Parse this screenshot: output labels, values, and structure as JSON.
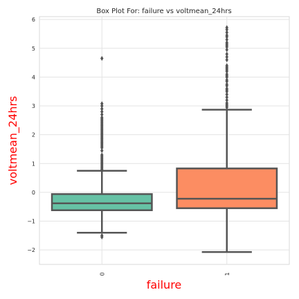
{
  "chart_data": {
    "type": "box",
    "title": "Box Plot For: failure vs voltmean_24hrs",
    "xlabel": "failure",
    "ylabel": "voltmean_24hrs",
    "categories": [
      "0",
      "1"
    ],
    "ylim": [
      -2.5,
      6.1
    ],
    "yticks": [
      -2,
      -1,
      0,
      1,
      2,
      3,
      4,
      5,
      6
    ],
    "grid": true,
    "boxes": [
      {
        "category": "0",
        "color": "#66c2a5",
        "whisker_low": -1.4,
        "q1": -0.62,
        "median": -0.38,
        "q3": -0.06,
        "whisker_high": 0.75,
        "outliers": [
          -1.55,
          -1.5,
          0.8,
          0.85,
          0.9,
          0.95,
          1.0,
          1.05,
          1.1,
          1.15,
          1.2,
          1.25,
          1.3,
          1.45,
          1.55,
          1.6,
          1.65,
          1.7,
          1.75,
          1.8,
          1.85,
          1.9,
          1.95,
          2.0,
          2.05,
          2.1,
          2.15,
          2.2,
          2.25,
          2.3,
          2.35,
          2.4,
          2.45,
          2.5,
          2.55,
          2.6,
          2.7,
          2.8,
          2.9,
          3.0,
          3.08,
          4.65
        ]
      },
      {
        "category": "1",
        "color": "#fc8d62",
        "whisker_low": -2.07,
        "q1": -0.55,
        "median": -0.22,
        "q3": 0.83,
        "whisker_high": 2.87,
        "outliers": [
          2.95,
          3.0,
          3.05,
          3.1,
          3.2,
          3.3,
          3.4,
          3.5,
          3.55,
          3.6,
          3.7,
          3.75,
          3.85,
          3.9,
          4.0,
          4.05,
          4.1,
          4.2,
          4.25,
          4.3,
          4.35,
          4.4,
          4.6,
          4.7,
          4.8,
          4.95,
          5.05,
          5.1,
          5.15,
          5.2,
          5.3,
          5.4,
          5.45,
          5.55,
          5.65,
          5.72
        ]
      }
    ]
  }
}
